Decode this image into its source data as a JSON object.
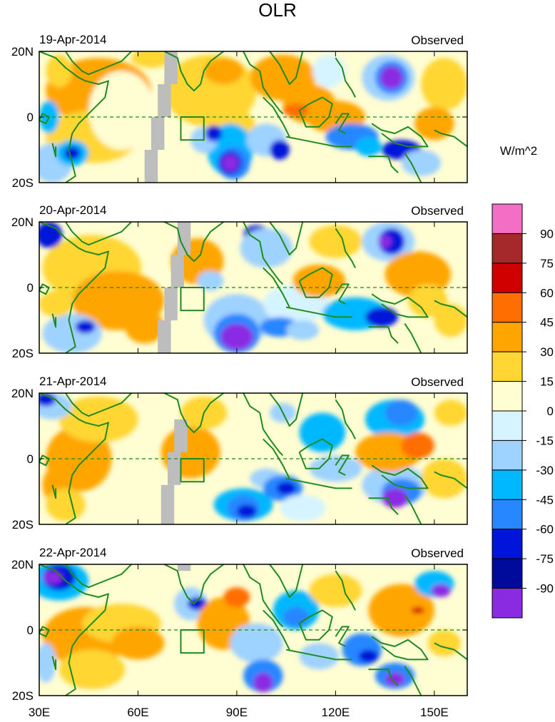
{
  "title": "OLR",
  "panels": [
    {
      "date": "19-Apr-2014",
      "label": "Observed"
    },
    {
      "date": "20-Apr-2014",
      "label": "Observed"
    },
    {
      "date": "21-Apr-2014",
      "label": "Observed"
    },
    {
      "date": "22-Apr-2014",
      "label": "Observed"
    }
  ],
  "lat_ticks": [
    "20N",
    "0",
    "20S"
  ],
  "lon_ticks": [
    "30E",
    "60E",
    "90E",
    "120E",
    "150E"
  ],
  "colorbar": {
    "units": "W/m^2",
    "labels": [
      "90",
      "75",
      "60",
      "45",
      "30",
      "15",
      "0",
      "-15",
      "-30",
      "-45",
      "-60",
      "-75",
      "-90"
    ],
    "colors": [
      "#f36fc6",
      "#a5282a",
      "#d10000",
      "#ff6e00",
      "#ffa500",
      "#ffd633",
      "#fffdd2",
      "#d6f4ff",
      "#9ed2ff",
      "#00b8ff",
      "#2787ff",
      "#0015d9",
      "#000a9b",
      "#8a2be2"
    ]
  },
  "colors": {
    "coast": "#1f8a1f",
    "missing": "#bdbdbd"
  }
}
